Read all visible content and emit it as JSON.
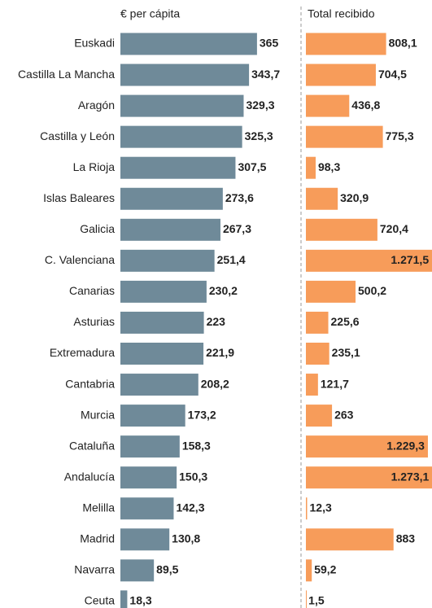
{
  "chart_data": {
    "type": "bar",
    "orientation": "horizontal",
    "categories": [
      "Euskadi",
      "Castilla La Mancha",
      "Aragón",
      "Castilla y León",
      "La Rioja",
      "Islas Baleares",
      "Galicia",
      "C. Valenciana",
      "Canarias",
      "Asturias",
      "Extremadura",
      "Cantabria",
      "Murcia",
      "Cataluña",
      "Andalucía",
      "Melilla",
      "Madrid",
      "Navarra",
      "Ceuta"
    ],
    "series": [
      {
        "name": "€ per cápita",
        "color": "#6f8a99",
        "xlim": [
          0,
          500
        ],
        "values": [
          365,
          343.7,
          329.3,
          325.3,
          307.5,
          273.6,
          267.3,
          251.4,
          230.2,
          223,
          221.9,
          208.2,
          173.2,
          158.3,
          150.3,
          142.3,
          130.8,
          89.5,
          18.3
        ],
        "value_labels": [
          "365",
          "343,7",
          "329,3",
          "325,3",
          "307,5",
          "273,6",
          "267,3",
          "251,4",
          "230,2",
          "223",
          "221,9",
          "208,2",
          "173,2",
          "158,3",
          "150,3",
          "142,3",
          "130,8",
          "89,5",
          "18,3"
        ]
      },
      {
        "name": "Total recibido",
        "color": "#f79c5a",
        "xlim": [
          0,
          1300
        ],
        "values": [
          808.1,
          704.5,
          436.8,
          775.3,
          98.3,
          320.9,
          720.4,
          1271.5,
          500.2,
          225.6,
          235.1,
          121.7,
          263,
          1229.3,
          1273.1,
          12.3,
          883,
          59.2,
          1.5
        ],
        "value_labels": [
          "808,1",
          "704,5",
          "436,8",
          "775,3",
          "98,3",
          "320,9",
          "720,4",
          "1.271,5",
          "500,2",
          "225,6",
          "235,1",
          "121,7",
          "263",
          "1.229,3",
          "1.273,1",
          "12,3",
          "883",
          "59,2",
          "1,5"
        ]
      }
    ]
  }
}
